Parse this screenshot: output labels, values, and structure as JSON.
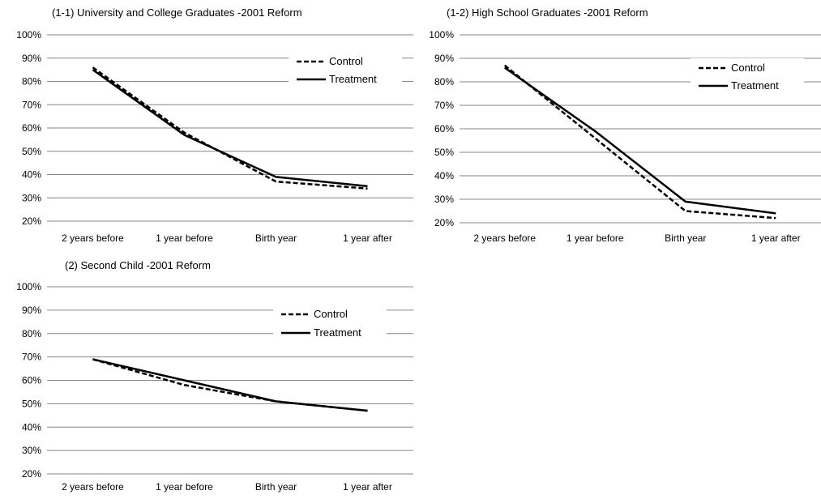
{
  "chart_data": [
    {
      "type": "line",
      "title": "(1-1)  University and College Graduates -2001 Reform",
      "categories": [
        "2 years before",
        "1 year before",
        "Birth year",
        "1 year after"
      ],
      "yticks": [
        "20%",
        "30%",
        "40%",
        "50%",
        "60%",
        "70%",
        "80%",
        "90%",
        "100%"
      ],
      "ylim": [
        20,
        100
      ],
      "grid": true,
      "legend_position": "top-right",
      "series": [
        {
          "name": "Control",
          "style": "dashed",
          "values": [
            86,
            58,
            37,
            34
          ]
        },
        {
          "name": "Treatment",
          "style": "solid",
          "values": [
            85,
            57,
            39,
            35
          ]
        }
      ]
    },
    {
      "type": "line",
      "title": "(1-2) High School Graduates -2001 Reform",
      "categories": [
        "2 years before",
        "1 year before",
        "Birth year",
        "1 year after"
      ],
      "yticks": [
        "20%",
        "30%",
        "40%",
        "50%",
        "60%",
        "70%",
        "80%",
        "90%",
        "100%"
      ],
      "ylim": [
        20,
        100
      ],
      "grid": true,
      "legend_position": "top-right",
      "series": [
        {
          "name": "Control",
          "style": "dashed",
          "values": [
            87,
            56,
            25,
            22
          ]
        },
        {
          "name": "Treatment",
          "style": "solid",
          "values": [
            86,
            59,
            29,
            24
          ]
        }
      ]
    },
    {
      "type": "line",
      "title": "(2) Second Child -2001 Reform",
      "categories": [
        "2 years before",
        "1 year before",
        "Birth year",
        "1 year after"
      ],
      "yticks": [
        "20%",
        "30%",
        "40%",
        "50%",
        "60%",
        "70%",
        "80%",
        "90%",
        "100%"
      ],
      "ylim": [
        20,
        100
      ],
      "grid": true,
      "legend_position": "top-right",
      "series": [
        {
          "name": "Control",
          "style": "dashed",
          "values": [
            69,
            58,
            51,
            47
          ]
        },
        {
          "name": "Treatment",
          "style": "solid",
          "values": [
            69,
            60,
            51,
            47
          ]
        }
      ]
    }
  ]
}
